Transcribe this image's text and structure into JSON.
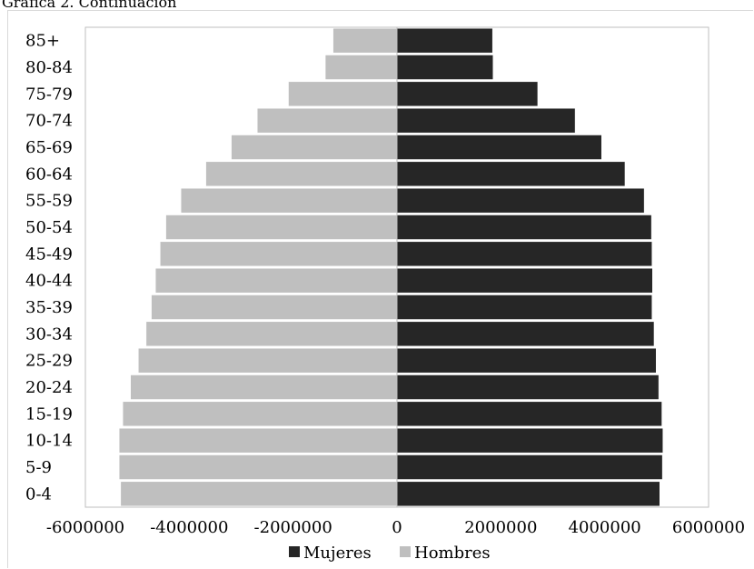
{
  "figure": {
    "title": "Gráfica 2. Continuación"
  },
  "chart_data": {
    "type": "bar",
    "orientation": "horizontal",
    "title": "",
    "categories": [
      "0-4",
      "5-9",
      "10-14",
      "15-19",
      "20-24",
      "25-29",
      "30-34",
      "35-39",
      "40-44",
      "45-49",
      "50-54",
      "55-59",
      "60-64",
      "65-69",
      "70-74",
      "75-79",
      "80-84",
      "85+"
    ],
    "series": [
      {
        "name": "Mujeres",
        "color": "#262626",
        "values": [
          5060000,
          5110000,
          5120000,
          5100000,
          5040000,
          4990000,
          4950000,
          4910000,
          4920000,
          4910000,
          4900000,
          4760000,
          4390000,
          3940000,
          3430000,
          2710000,
          1850000,
          1840000
        ]
      },
      {
        "name": "Hombres",
        "color": "#bfbfbf",
        "values": [
          -5320000,
          -5350000,
          -5350000,
          -5280000,
          -5130000,
          -4980000,
          -4830000,
          -4730000,
          -4650000,
          -4560000,
          -4450000,
          -4160000,
          -3680000,
          -3190000,
          -2690000,
          -2090000,
          -1380000,
          -1230000
        ]
      }
    ],
    "x_ticks": [
      "-6000000",
      "-4000000",
      "-2000000",
      "0",
      "2000000",
      "4000000",
      "6000000"
    ],
    "xlim": [
      -6000000,
      6000000
    ],
    "xlabel": "",
    "ylabel": "",
    "legend": {
      "position": "bottom",
      "entries": [
        "Mujeres",
        "Hombres"
      ]
    },
    "grid": false
  }
}
